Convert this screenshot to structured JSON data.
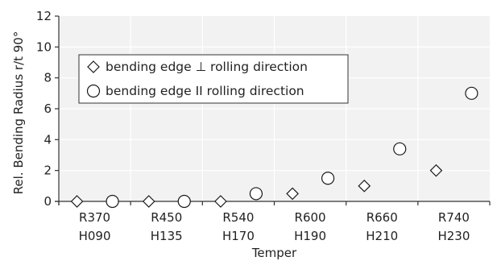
{
  "chart_data": {
    "type": "scatter",
    "title": "",
    "xlabel": "Temper",
    "ylabel": "Rel. Bending Radius r/t 90°",
    "ylim": [
      0,
      12
    ],
    "yticks": [
      "0",
      "2",
      "4",
      "6",
      "8",
      "10",
      "12"
    ],
    "categories": [
      {
        "line1": "R370",
        "line2": "H090"
      },
      {
        "line1": "R450",
        "line2": "H135"
      },
      {
        "line1": "R540",
        "line2": "H170"
      },
      {
        "line1": "R600",
        "line2": "H190"
      },
      {
        "line1": "R660",
        "line2": "H210"
      },
      {
        "line1": "R740",
        "line2": "H230"
      }
    ],
    "grid": true,
    "legend_position": "top-left",
    "series": [
      {
        "name": "bending edge ⊥ rolling direction",
        "marker": "diamond",
        "values": [
          0,
          0,
          0,
          0.5,
          1.0,
          2.0
        ]
      },
      {
        "name": "bending edge II  rolling direction",
        "marker": "circle",
        "values": [
          0,
          0,
          0.5,
          1.5,
          3.4,
          7.0
        ]
      }
    ]
  }
}
